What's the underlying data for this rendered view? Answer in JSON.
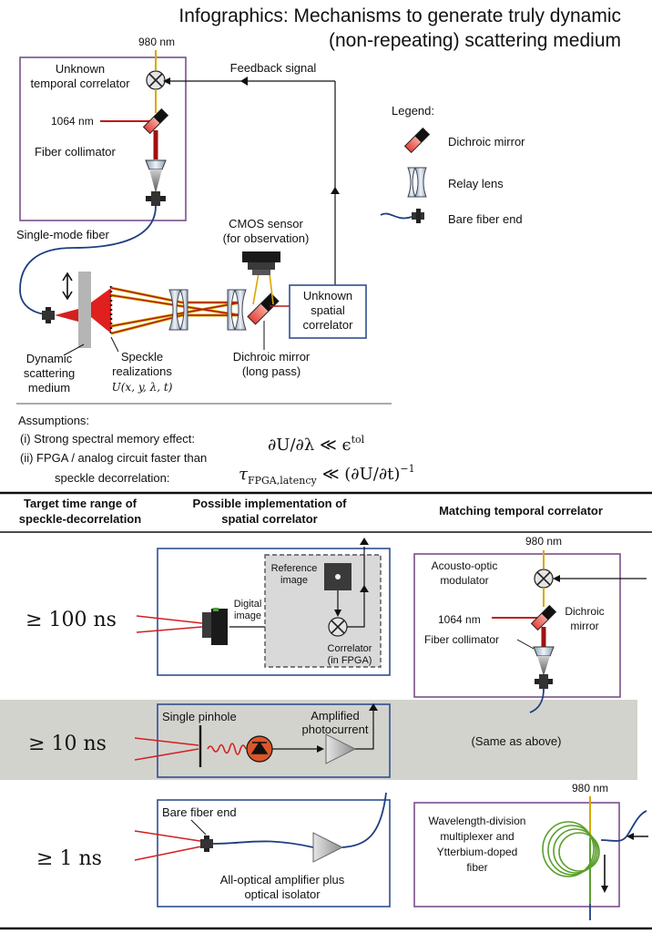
{
  "title": {
    "line1": "Infographics: Mechanisms to generate truly dynamic",
    "line2": "(non-repeating) scattering medium"
  },
  "top": {
    "nm980": "980 nm",
    "unknown_temporal_correlator": [
      "Unknown",
      "temporal correlator"
    ],
    "feedback_signal": "Feedback signal",
    "nm1064": "1064 nm",
    "fiber_collimator": "Fiber collimator",
    "single_mode_fiber": "Single-mode fiber",
    "cmos_sensor": [
      "CMOS sensor",
      "(for observation)"
    ],
    "unknown_spatial_correlator": [
      "Unknown",
      "spatial",
      "correlator"
    ],
    "dynamic_scattering_medium": [
      "Dynamic",
      "scattering",
      "medium"
    ],
    "speckle_realizations": [
      "Speckle",
      "realizations"
    ],
    "speckle_formula": "U(x, y, λ, t)",
    "dichroic_mirror_long_pass": [
      "Dichroic mirror",
      "(long pass)"
    ]
  },
  "legend": {
    "title": "Legend:",
    "dichroic_mirror": "Dichroic mirror",
    "relay_lens": "Relay lens",
    "bare_fiber_end": "Bare fiber end"
  },
  "assumptions": {
    "title": "Assumptions:",
    "item1": "(i) Strong spectral memory effect:",
    "item2a": "(ii) FPGA / analog circuit faster than",
    "item2b": "speckle decorrelation:",
    "eq1": "∂U/∂λ ≪ ϵ",
    "eq1_sup": "tol",
    "eq2_tau": "τ",
    "eq2_sub": "FPGA,latency",
    "eq2_rest": "≪ (∂U/∂t)",
    "eq2_sup": "−1"
  },
  "table": {
    "headers": [
      [
        "Target time range of",
        "speckle-decorrelation"
      ],
      [
        "Possible implementation of",
        "spatial correlator"
      ],
      [
        "Matching temporal correlator"
      ]
    ],
    "rows": [
      {
        "time": "≥ 100 ns"
      },
      {
        "time": "≥ 10 ns"
      },
      {
        "time": "≥ 1 ns"
      }
    ]
  },
  "row1": {
    "reference_image": [
      "Reference",
      "image"
    ],
    "digital_image": [
      "Digital",
      "image"
    ],
    "correlator_fpga": [
      "Correlator",
      "(in FPGA)"
    ],
    "aom": [
      "Acousto-optic",
      "modulator"
    ],
    "nm980": "980 nm",
    "nm1064": "1064 nm",
    "dichroic_mirror": [
      "Dichroic",
      "mirror"
    ],
    "fiber_collimator": "Fiber collimator"
  },
  "row2": {
    "single_pinhole": "Single pinhole",
    "amplified_photocurrent": [
      "Amplified",
      "photocurrent"
    ],
    "same_as_above": "(Same as above)"
  },
  "row3": {
    "bare_fiber_end": "Bare fiber end",
    "all_optical_amp": [
      "All-optical amplifier plus",
      "optical isolator"
    ],
    "nm980": "980 nm",
    "wdm": [
      "Wavelength-division",
      "multiplexer and",
      "Ytterbium-doped",
      "fiber"
    ]
  },
  "colors": {
    "purple_box": "#7a4f8a",
    "blue_box": "#2f4f8f",
    "laser_red": "#c01818",
    "fiber_blue": "#1f3f80",
    "yellow_980": "#d9a800",
    "gray_band": "#d3d3ce",
    "ytterbium_green": "#5aa02c"
  }
}
